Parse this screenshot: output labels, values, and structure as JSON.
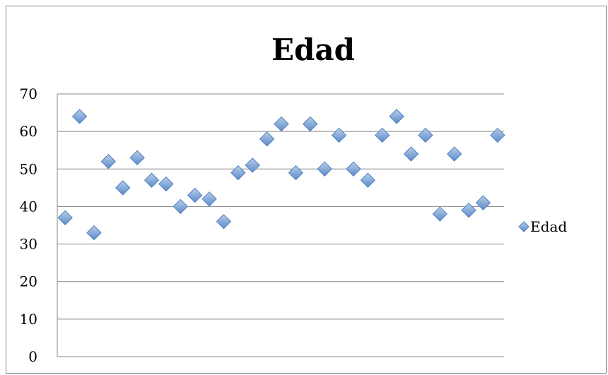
{
  "chart_data": {
    "type": "scatter",
    "title": "Edad",
    "xlabel": "",
    "ylabel": "",
    "ylim": [
      0,
      70
    ],
    "ytick_step": 10,
    "grid": true,
    "legend_position": "right",
    "marker": "diamond",
    "series": [
      {
        "name": "Edad",
        "color": "#4f81bd",
        "x": [
          1,
          2,
          3,
          4,
          5,
          6,
          7,
          8,
          9,
          10,
          11,
          12,
          13,
          14,
          15,
          16,
          17,
          18,
          19,
          20,
          21,
          22,
          23,
          24,
          25,
          26,
          27,
          28,
          29,
          30,
          31
        ],
        "values": [
          37,
          64,
          33,
          52,
          45,
          53,
          47,
          46,
          40,
          43,
          42,
          36,
          49,
          51,
          58,
          62,
          49,
          62,
          50,
          59,
          50,
          47,
          59,
          64,
          54,
          59,
          38,
          54,
          39,
          41,
          59
        ]
      }
    ]
  }
}
